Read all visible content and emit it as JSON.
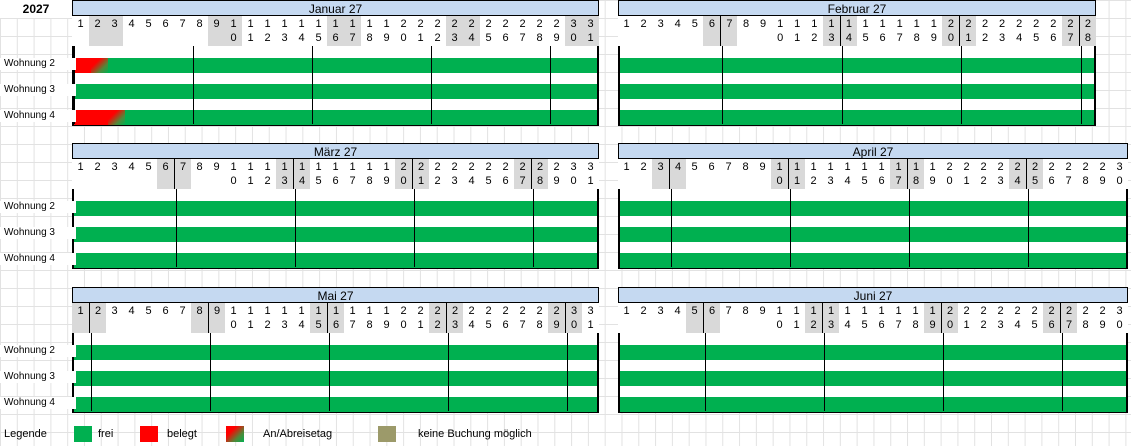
{
  "year": "2027",
  "colors": {
    "free": "#00b050",
    "booked": "#ff0000",
    "header": "#c5d9f1",
    "shade": "#d9d9d9",
    "blocked": "#9c9a6a"
  },
  "apartments": [
    "Wohnung 2",
    "Wohnung 3",
    "Wohnung 4"
  ],
  "months": [
    {
      "name": "Januar 27",
      "days": 31,
      "weekend_start": 2,
      "week_breaks": [
        1,
        8,
        15,
        22,
        29
      ]
    },
    {
      "name": "Februar 27",
      "days": 28,
      "weekend_start": 6,
      "week_breaks": [
        7,
        14,
        21,
        28
      ]
    },
    {
      "name": "März 27",
      "days": 31,
      "weekend_start": 6,
      "week_breaks": [
        7,
        14,
        21,
        28
      ]
    },
    {
      "name": "April 27",
      "days": 30,
      "weekend_start": 3,
      "week_breaks": [
        4,
        11,
        18,
        25
      ]
    },
    {
      "name": "Mai 27",
      "days": 31,
      "weekend_start": 1,
      "week_breaks": [
        2,
        9,
        16,
        23,
        30
      ]
    },
    {
      "name": "Juni 27",
      "days": 30,
      "weekend_start": 5,
      "week_breaks": [
        6,
        13,
        20,
        27
      ]
    }
  ],
  "bookings": [
    {
      "month": 0,
      "row": 0,
      "booked_days": [
        1
      ],
      "transition_day": 2
    },
    {
      "month": 0,
      "row": 2,
      "booked_days": [
        1,
        2
      ],
      "transition_day": 3
    }
  ],
  "legend": {
    "title": "Legende",
    "items": [
      {
        "label": "frei",
        "color": "#00b050"
      },
      {
        "label": "belegt",
        "color": "#ff0000"
      },
      {
        "label": "An/Abreisetag",
        "color": "gradient"
      },
      {
        "label": "keine Buchung möglich",
        "color": "#9c9a6a"
      }
    ]
  }
}
